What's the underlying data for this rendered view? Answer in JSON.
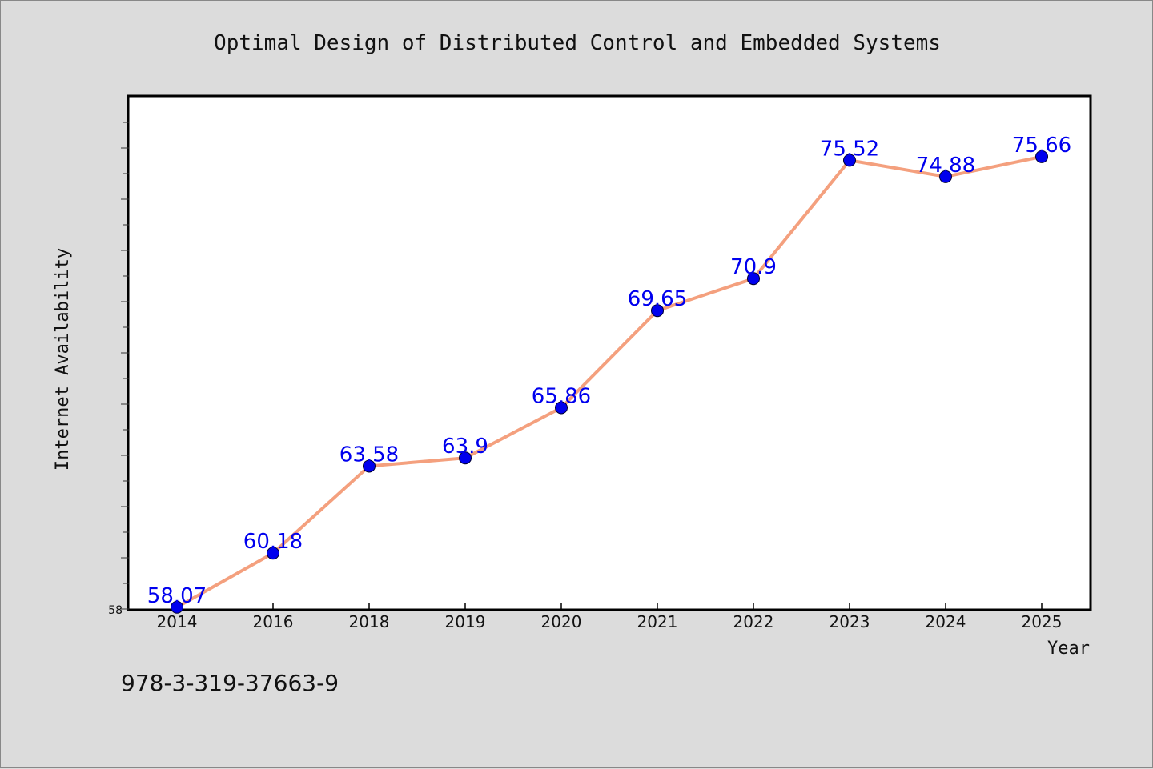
{
  "chart_data": {
    "type": "line",
    "title": "Optimal Design of Distributed Control and Embedded Systems",
    "xlabel": "Year",
    "ylabel": "Internet Availability",
    "categories": [
      "2014",
      "2016",
      "2018",
      "2019",
      "2020",
      "2021",
      "2022",
      "2023",
      "2024",
      "2025"
    ],
    "series": [
      {
        "values": [
          58.07,
          60.18,
          63.58,
          63.9,
          65.86,
          69.65,
          70.9,
          75.52,
          74.88,
          75.66
        ],
        "labels": [
          "58.07",
          "60.18",
          "63.58",
          "63.9",
          "65.86",
          "69.65",
          "70.9",
          "75.52",
          "74.88",
          "75.66"
        ]
      }
    ],
    "ylim": [
      58,
      78
    ],
    "yticks_labeled": [
      "58"
    ],
    "grid": false,
    "legend": "none",
    "line_color": "#f4a07e",
    "marker_color": "#0000ee",
    "label_color": "#0000ee"
  },
  "footer": {
    "isbn": "978-3-319-37663-9"
  }
}
